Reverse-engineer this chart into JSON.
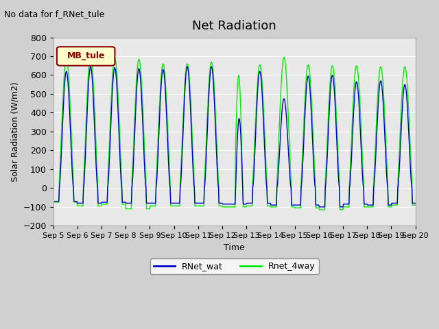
{
  "title": "Net Radiation",
  "top_left_text": "No data for f_RNet_tule",
  "ylabel": "Solar Radiation (W/m2)",
  "xlabel": "Time",
  "ylim": [
    -200,
    800
  ],
  "legend_box_label": "MB_tule",
  "legend_entries": [
    "RNet_wat",
    "Rnet_4way"
  ],
  "line_colors": [
    "#0000cc",
    "#00ee00"
  ],
  "plot_bg_color": "#e8e8e8",
  "fig_bg_color": "#d0d0d0",
  "yticks": [
    -200,
    -100,
    0,
    100,
    200,
    300,
    400,
    500,
    600,
    700,
    800
  ],
  "xtick_labels": [
    "Sep 5",
    "Sep 6",
    "Sep 7",
    "Sep 8",
    "Sep 9",
    "Sep 10",
    "Sep 11",
    "Sep 12",
    "Sep 13",
    "Sep 14",
    "Sep 15",
    "Sep 16",
    "Sep 17",
    "Sep 18",
    "Sep 19",
    "Sep 20"
  ],
  "num_days": 15,
  "start_day": 5,
  "peaks_blue": [
    620,
    645,
    640,
    635,
    630,
    645,
    645,
    370,
    620,
    475,
    595,
    600,
    565,
    570,
    550
  ],
  "peaks_green": [
    690,
    700,
    690,
    685,
    660,
    660,
    670,
    610,
    655,
    695,
    655,
    650,
    650,
    645,
    645
  ],
  "night_blue": [
    -70,
    -80,
    -75,
    -80,
    -80,
    -80,
    -80,
    -85,
    -80,
    -90,
    -90,
    -100,
    -85,
    -90,
    -80
  ],
  "night_green": [
    -75,
    -95,
    -85,
    -110,
    -95,
    -95,
    -95,
    -100,
    -95,
    -100,
    -105,
    -115,
    -100,
    -100,
    -90
  ]
}
